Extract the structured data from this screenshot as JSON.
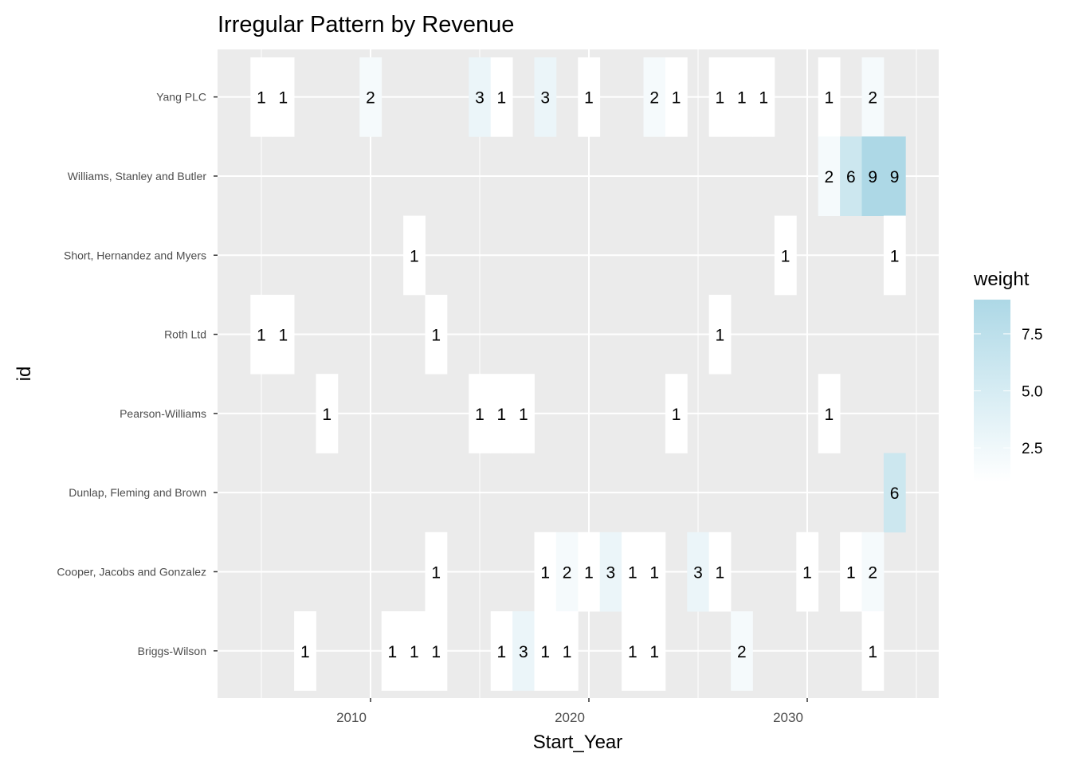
{
  "chart_data": {
    "type": "heatmap",
    "title": "Irregular Pattern by Revenue",
    "xlabel": "Start_Year",
    "ylabel": "id",
    "xlim": [
      2003,
      2036
    ],
    "x_ticks": [
      2010,
      2020,
      2030
    ],
    "x_tick_labels": [
      "2010",
      "2020",
      "2030"
    ],
    "categories": [
      "Yang PLC",
      "Williams, Stanley and Butler",
      "Short, Hernandez and Myers",
      "Roth Ltd",
      "Pearson-Williams",
      "Dunlap, Fleming and Brown",
      "Cooper, Jacobs and Gonzalez",
      "Briggs-Wilson"
    ],
    "grid": true,
    "series": [
      {
        "name": "Yang PLC",
        "x": [
          2005,
          2006,
          2010,
          2015,
          2016,
          2018,
          2020,
          2023,
          2024,
          2026,
          2027,
          2028,
          2031,
          2033
        ],
        "values": [
          1,
          1,
          2,
          3,
          1,
          3,
          1,
          2,
          1,
          1,
          1,
          1,
          1,
          2
        ]
      },
      {
        "name": "Williams, Stanley and Butler",
        "x": [
          2031,
          2032,
          2033,
          2034
        ],
        "values": [
          2,
          6,
          9,
          9
        ]
      },
      {
        "name": "Short, Hernandez and Myers",
        "x": [
          2012,
          2029,
          2034
        ],
        "values": [
          1,
          1,
          1
        ]
      },
      {
        "name": "Roth Ltd",
        "x": [
          2005,
          2006,
          2013,
          2026
        ],
        "values": [
          1,
          1,
          1,
          1
        ]
      },
      {
        "name": "Pearson-Williams",
        "x": [
          2008,
          2015,
          2016,
          2017,
          2024,
          2031
        ],
        "values": [
          1,
          1,
          1,
          1,
          1,
          1
        ]
      },
      {
        "name": "Dunlap, Fleming and Brown",
        "x": [
          2034
        ],
        "values": [
          6
        ]
      },
      {
        "name": "Cooper, Jacobs and Gonzalez",
        "x": [
          2013,
          2018,
          2019,
          2020,
          2021,
          2022,
          2023,
          2025,
          2026,
          2030,
          2032,
          2033
        ],
        "values": [
          1,
          1,
          2,
          1,
          3,
          1,
          1,
          3,
          1,
          1,
          1,
          2
        ]
      },
      {
        "name": "Briggs-Wilson",
        "x": [
          2007,
          2011,
          2012,
          2013,
          2016,
          2017,
          2018,
          2019,
          2022,
          2023,
          2027,
          2033
        ],
        "values": [
          1,
          1,
          1,
          1,
          1,
          3,
          1,
          1,
          1,
          1,
          2,
          1
        ]
      }
    ],
    "legend": {
      "title": "weight",
      "position": "right",
      "range": [
        1,
        9
      ],
      "ticks": [
        2.5,
        5.0,
        7.5
      ],
      "tick_labels": [
        "2.5",
        "5.0",
        "7.5"
      ],
      "low_color": "#ffffff",
      "high_color": "#add8e6"
    },
    "panel_color": "#ebebeb",
    "grid_color": "#ffffff"
  }
}
